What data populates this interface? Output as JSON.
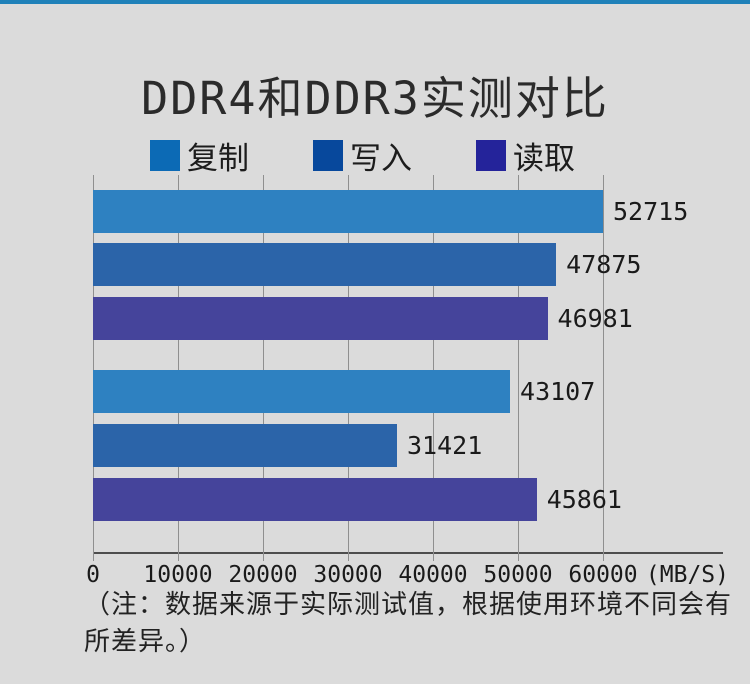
{
  "page": {
    "note": "（注：数据来源于实际测试值，根据使用环境不同会有所差异。）"
  },
  "colors": {
    "top_strip": "#1f81b9",
    "background": "#dbdbdb",
    "grid_line": "#8f8f8f",
    "axis_line": "#4d4d4d",
    "text": "#1f1f1f"
  },
  "chart_data": {
    "type": "bar",
    "orientation": "horizontal",
    "title": "DDR4和DDR3实测对比",
    "unit": "(MB/S)",
    "xlim": [
      0,
      60000
    ],
    "x_ticks": [
      "0",
      "10000",
      "20000",
      "30000",
      "40000",
      "50000",
      "60000"
    ],
    "grid": true,
    "legend_position": "top",
    "legend": [
      {
        "label": "复制",
        "color": "#0c6ab5"
      },
      {
        "label": "写入",
        "color": "#07489c"
      },
      {
        "label": "读取",
        "color": "#24239a"
      }
    ],
    "series": [
      {
        "name": "复制",
        "values": [
          52715,
          43107
        ]
      },
      {
        "name": "写入",
        "values": [
          47875,
          31421
        ]
      },
      {
        "name": "读取",
        "values": [
          46981,
          45861
        ]
      }
    ],
    "bars": [
      {
        "series": "复制",
        "value": 52715,
        "label": "52715",
        "color": "#2e81c1"
      },
      {
        "series": "写入",
        "value": 47875,
        "label": "47875",
        "color": "#2b64a9"
      },
      {
        "series": "读取",
        "value": 46981,
        "label": "46981",
        "color": "#45449b"
      },
      {
        "series": "复制",
        "value": 43107,
        "label": "43107",
        "color": "#2e81c1"
      },
      {
        "series": "写入",
        "value": 31421,
        "label": "31421",
        "color": "#2b64a9"
      },
      {
        "series": "读取",
        "value": 45861,
        "label": "45861",
        "color": "#45449b"
      }
    ]
  }
}
